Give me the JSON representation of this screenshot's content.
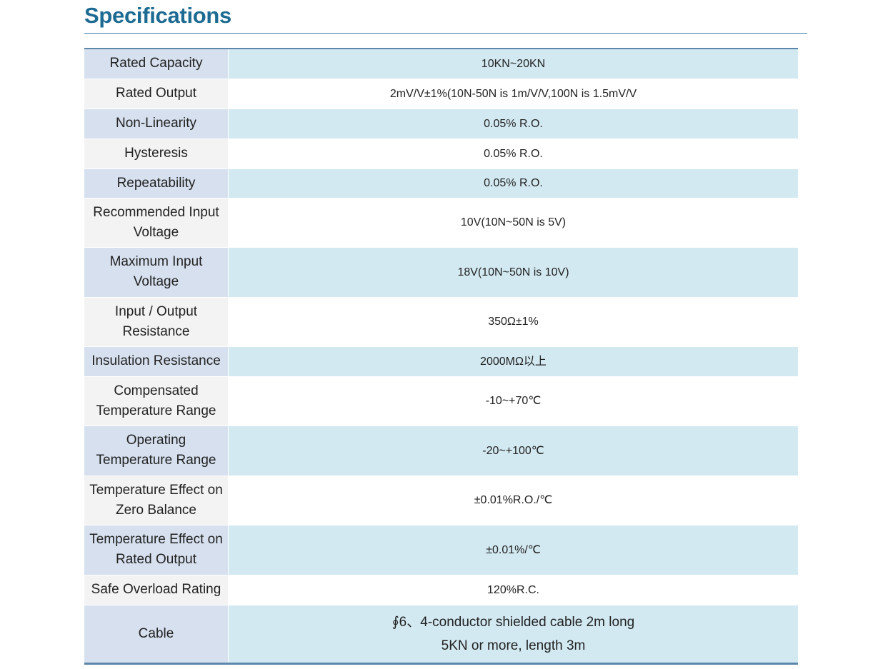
{
  "header": {
    "title": "Specifications"
  },
  "table": {
    "rows": [
      {
        "label": "Rated Capacity",
        "value": "10KN~20KN"
      },
      {
        "label": "Rated Output",
        "value": "2mV/V±1%(10N-50N is 1m/V/V,100N is 1.5mV/V"
      },
      {
        "label": "Non-Linearity",
        "value": "0.05% R.O."
      },
      {
        "label": "Hysteresis",
        "value": "0.05% R.O."
      },
      {
        "label": "Repeatability",
        "value": "0.05% R.O."
      },
      {
        "label": "Recommended Input Voltage",
        "value": "10V(10N~50N is 5V)"
      },
      {
        "label": "Maximum Input Voltage",
        "value": "18V(10N~50N is 10V)"
      },
      {
        "label": "Input / Output Resistance",
        "value": "350Ω±1%"
      },
      {
        "label": "Insulation Resistance",
        "value": "2000MΩ以上"
      },
      {
        "label": "Compensated Temperature Range",
        "value": "-10~+70℃"
      },
      {
        "label": "Operating Temperature Range",
        "value": "-20~+100℃"
      },
      {
        "label": "Temperature Effect on Zero Balance",
        "value": "±0.01%R.O./℃"
      },
      {
        "label": "Temperature Effect on Rated Output",
        "value": "±0.01%/℃"
      },
      {
        "label": "Safe Overload Rating",
        "value": "120%R.C."
      },
      {
        "label": "Cable",
        "value": [
          "∮6、4-conductor shielded cable 2m long",
          "5KN or more, length 3m"
        ]
      }
    ]
  }
}
